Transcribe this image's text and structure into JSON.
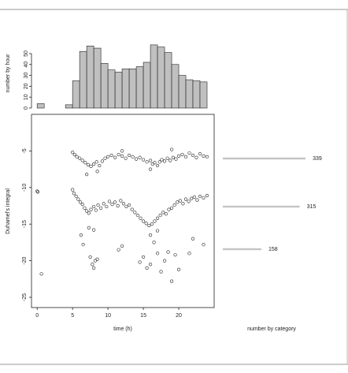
{
  "chart_data": [
    {
      "type": "histogram",
      "ylabel": "number by hour",
      "color": "#c0c0c0",
      "bins": [
        0,
        1,
        2,
        3,
        4,
        5,
        6,
        7,
        8,
        9,
        10,
        11,
        12,
        13,
        14,
        15,
        16,
        17,
        18,
        19,
        20,
        21,
        22,
        23,
        24
      ],
      "values": [
        4,
        0,
        0,
        0,
        3,
        25,
        52,
        57,
        55,
        41,
        35,
        33,
        36,
        36,
        38,
        42,
        58,
        56,
        51,
        40,
        30,
        26,
        25,
        24
      ],
      "xlim": [
        -0.8,
        25
      ],
      "ylim": [
        0,
        63
      ],
      "yticks": [
        0,
        10,
        20,
        30,
        40,
        50
      ]
    },
    {
      "type": "scatter",
      "xlabel": "time (h)",
      "ylabel": "Duhamel's integral",
      "x": [
        5,
        5.3,
        5.6,
        6,
        6.4,
        6.8,
        7.2,
        7.6,
        8,
        8.4,
        8.8,
        9.2,
        9.6,
        10,
        10.5,
        11,
        11.5,
        12,
        12.5,
        13,
        13.5,
        14,
        14.5,
        15,
        15.5,
        16,
        16.3,
        16.6,
        17,
        17.3,
        17.6,
        18,
        18.4,
        18.8,
        19.2,
        19.6,
        20,
        20.5,
        21,
        21.5,
        22,
        22.5,
        23,
        23.5,
        24,
        7,
        8.5,
        12,
        16,
        19,
        5,
        5.2,
        5.5,
        5.8,
        6.1,
        6.4,
        6.7,
        7,
        7.3,
        7.6,
        8,
        8.3,
        8.6,
        9,
        9.4,
        9.8,
        10.2,
        10.6,
        11,
        11.4,
        11.8,
        12.2,
        12.6,
        13,
        13.4,
        13.8,
        14.2,
        14.6,
        15,
        15.4,
        15.8,
        16.2,
        16.6,
        17,
        17.4,
        17.8,
        18.2,
        18.6,
        19,
        19.4,
        19.8,
        20.2,
        20.6,
        21,
        21.4,
        21.8,
        22.2,
        22.6,
        23,
        23.5,
        24,
        8,
        16,
        17,
        6.2,
        6.5,
        7.5,
        7.8,
        8,
        8.2,
        8.5,
        7.3,
        11.5,
        12,
        14.5,
        15,
        15.5,
        16,
        16.5,
        17,
        17.5,
        18,
        18.5,
        19,
        19.5,
        20,
        21.5,
        22,
        23.5,
        0,
        0.1,
        0.6
      ],
      "values": [
        -5.2,
        -5.5,
        -5.8,
        -6,
        -6.3,
        -6.6,
        -6.9,
        -7.1,
        -6.8,
        -6.5,
        -7,
        -6.4,
        -6,
        -5.8,
        -5.6,
        -5.9,
        -5.5,
        -5.7,
        -6,
        -5.6,
        -5.8,
        -6.1,
        -5.9,
        -6.2,
        -6.5,
        -6.3,
        -6.8,
        -6.6,
        -7,
        -6.5,
        -6.2,
        -6.4,
        -6,
        -6.3,
        -5.9,
        -6.1,
        -5.7,
        -5.5,
        -5.8,
        -5.3,
        -5.6,
        -5.9,
        -5.4,
        -5.7,
        -5.8,
        -8.2,
        -7.8,
        -5,
        -7.5,
        -4.8,
        -10.3,
        -10.8,
        -11.2,
        -11.6,
        -12,
        -12.3,
        -12.8,
        -13.2,
        -13.5,
        -13,
        -12.6,
        -13.1,
        -12.4,
        -12.8,
        -12.2,
        -12.6,
        -11.9,
        -12.3,
        -12,
        -12.5,
        -11.8,
        -12.2,
        -12.6,
        -12.4,
        -13,
        -13.4,
        -13.8,
        -14.2,
        -14.6,
        -14.9,
        -15.2,
        -15,
        -14.6,
        -14.2,
        -13.8,
        -13.4,
        -13.6,
        -13,
        -12.8,
        -12.4,
        -12,
        -11.8,
        -12.2,
        -11.6,
        -11.9,
        -11.5,
        -11.3,
        -11.7,
        -11.2,
        -11.4,
        -11.1,
        -15.8,
        -16.5,
        -15.9,
        -16.5,
        -17.8,
        -19.5,
        -20.5,
        -21,
        -20,
        -19.8,
        -15.5,
        -18.5,
        -18,
        -20.2,
        -19.5,
        -21,
        -20.5,
        -17.5,
        -19,
        -21.5,
        -20,
        -18.8,
        -22.8,
        -19.2,
        -21.2,
        -19,
        -17,
        -17.8,
        -10.5,
        -10.6,
        -21.8
      ],
      "xlim": [
        -0.8,
        25
      ],
      "xticks": [
        0,
        5,
        10,
        15,
        20
      ],
      "ylim": [
        -26.4,
        0
      ],
      "yticks": [
        -5,
        -10,
        -15,
        -20,
        -25
      ]
    },
    {
      "type": "bar",
      "orientation": "horizontal",
      "xlabel": "number by category",
      "color": "#c4c4c4",
      "categories": [
        null,
        null,
        null
      ],
      "values": [
        339,
        315,
        158
      ]
    }
  ]
}
